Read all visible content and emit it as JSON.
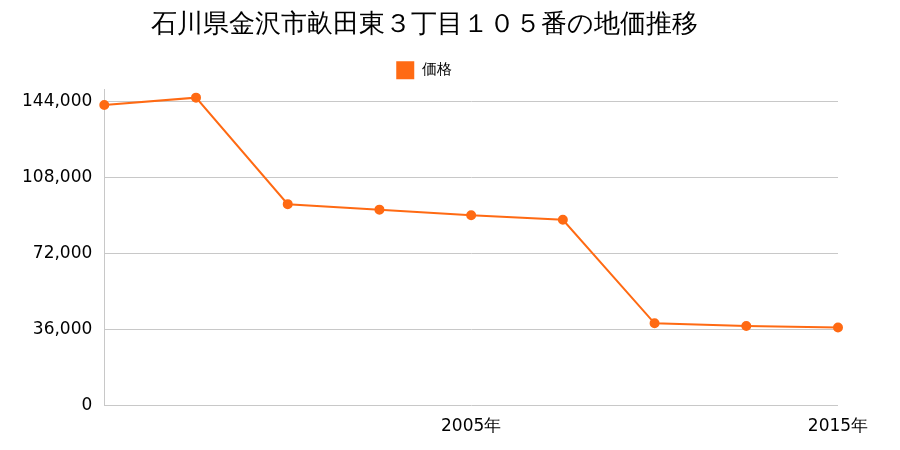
{
  "chart_data": {
    "type": "line",
    "title": "石川県金沢市畝田東３丁目１０５番の地価推移",
    "categories": [
      null,
      null,
      null,
      null,
      "2005年",
      null,
      null,
      null,
      "2015年"
    ],
    "series": [
      {
        "name": "価格",
        "color": "#ff6a13",
        "values": [
          142500,
          146000,
          95500,
          92900,
          90200,
          88100,
          39000,
          37700,
          37000
        ],
        "marker": "circle"
      }
    ],
    "ylim": [
      0,
      150000
    ],
    "yticks": [
      0,
      {
        "value": 36000,
        "label": "36,000"
      },
      {
        "value": 72000,
        "label": "72,000"
      },
      {
        "value": 108000,
        "label": "108,000"
      },
      {
        "value": 144000,
        "label": "144,000"
      }
    ],
    "grid": true,
    "legend": "top"
  }
}
